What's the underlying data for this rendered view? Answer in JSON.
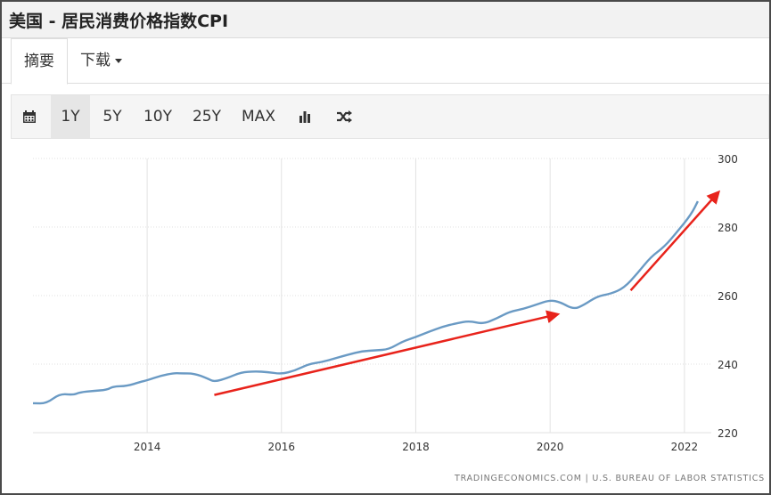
{
  "header": {
    "title": "美国 - 居民消费价格指数CPI"
  },
  "tabs": [
    {
      "label": "摘要"
    },
    {
      "label": "下载"
    }
  ],
  "toolbar": {
    "ranges": [
      "1Y",
      "5Y",
      "10Y",
      "25Y",
      "MAX"
    ],
    "selected": "1Y"
  },
  "source": "TRADINGECONOMICS.COM | U.S. BUREAU OF LABOR STATISTICS",
  "chart_data": {
    "type": "line",
    "series": [
      {
        "color": "#6a9ac4",
        "x": [
          2012.3,
          2012.5,
          2012.7,
          2012.9,
          2013.0,
          2013.2,
          2013.4,
          2013.5,
          2013.7,
          2013.9,
          2014.0,
          2014.2,
          2014.4,
          2014.5,
          2014.7,
          2014.9,
          2015.0,
          2015.2,
          2015.4,
          2015.6,
          2015.8,
          2016.0,
          2016.2,
          2016.4,
          2016.6,
          2016.8,
          2017.0,
          2017.2,
          2017.4,
          2017.6,
          2017.8,
          2018.0,
          2018.2,
          2018.4,
          2018.6,
          2018.8,
          2019.0,
          2019.2,
          2019.4,
          2019.6,
          2019.8,
          2020.0,
          2020.15,
          2020.35,
          2020.5,
          2020.7,
          2020.9,
          2021.1,
          2021.3,
          2021.5,
          2021.7,
          2021.9,
          2022.1,
          2022.2
        ],
        "y": [
          228.6,
          228.5,
          231.4,
          231.0,
          231.8,
          232.2,
          232.5,
          233.5,
          233.6,
          234.8,
          235.3,
          236.6,
          237.4,
          237.3,
          237.3,
          235.8,
          234.8,
          236.0,
          237.6,
          237.9,
          237.7,
          237.1,
          238.1,
          240.0,
          240.6,
          241.7,
          242.8,
          243.8,
          244.0,
          244.3,
          246.6,
          247.9,
          249.5,
          250.9,
          251.9,
          252.6,
          251.7,
          253.3,
          255.3,
          256.1,
          257.4,
          258.7,
          258.1,
          256.0,
          257.2,
          259.8,
          260.5,
          262.2,
          266.5,
          271.3,
          274.2,
          278.8,
          283.7,
          287.5
        ]
      }
    ],
    "xlim": [
      2012.3,
      2022.4
    ],
    "ylim": [
      220,
      300
    ],
    "x_ticks": [
      "2014",
      "2016",
      "2018",
      "2020",
      "2022"
    ],
    "y_ticks": [
      "220",
      "240",
      "260",
      "280",
      "300"
    ],
    "grid": true,
    "annotations": [
      {
        "type": "arrow",
        "color": "#e8231b",
        "from": [
          2015.0,
          231.0
        ],
        "to": [
          2020.1,
          254.5
        ]
      },
      {
        "type": "arrow",
        "color": "#e8231b",
        "from": [
          2021.2,
          261.5
        ],
        "to": [
          2022.5,
          290.0
        ]
      }
    ]
  }
}
